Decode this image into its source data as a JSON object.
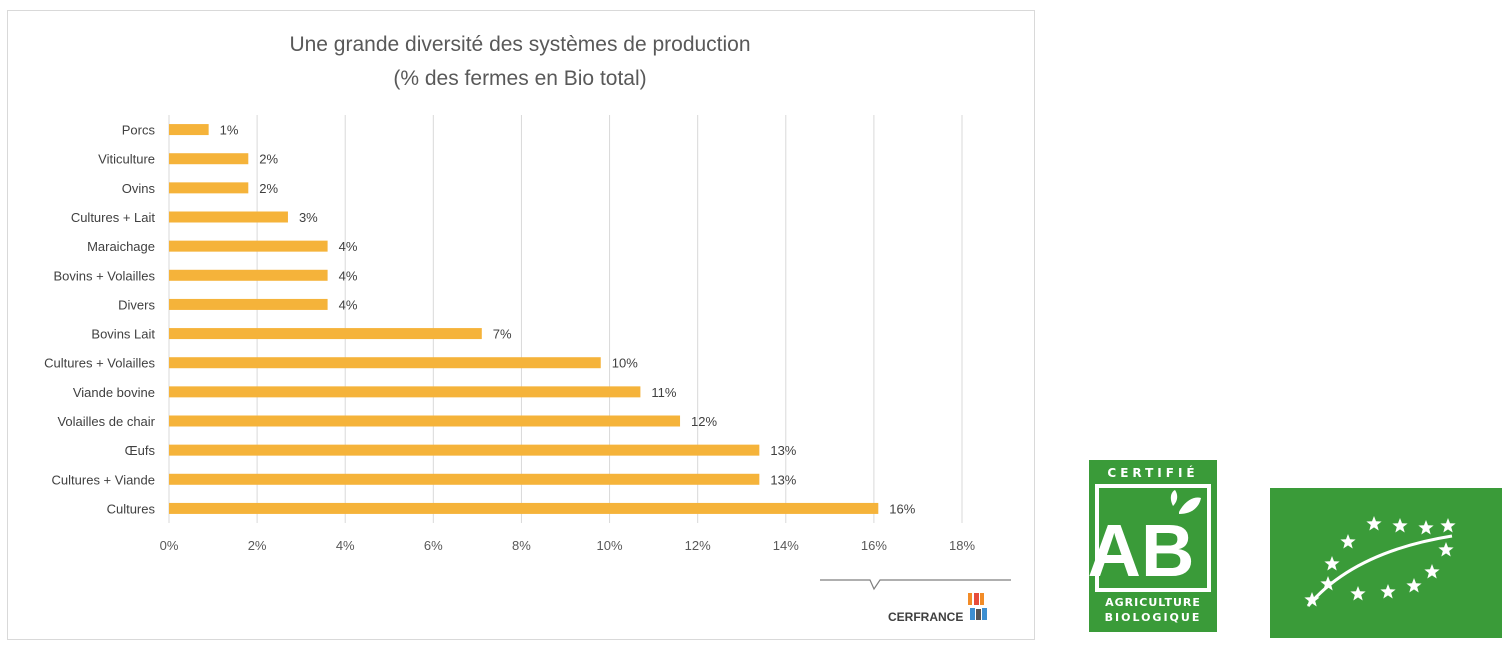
{
  "chart_data": {
    "type": "bar",
    "orientation": "horizontal",
    "title": "Une grande diversité des systèmes de production",
    "subtitle": "(% des fermes en Bio total)",
    "categories": [
      "Porcs",
      "Viticulture",
      "Ovins",
      "Cultures + Lait",
      "Maraichage",
      "Bovins + Volailles",
      "Divers",
      "Bovins Lait",
      "Cultures + Volailles",
      "Viande bovine",
      "Volailles de chair",
      "Œufs",
      "Cultures + Viande",
      "Cultures"
    ],
    "values": [
      0.9,
      1.8,
      1.8,
      2.7,
      3.6,
      3.6,
      3.6,
      7.1,
      9.8,
      10.7,
      11.6,
      13.4,
      13.4,
      16.1
    ],
    "data_labels": [
      "1%",
      "2%",
      "2%",
      "3%",
      "4%",
      "4%",
      "4%",
      "7%",
      "10%",
      "11%",
      "12%",
      "13%",
      "13%",
      "16%"
    ],
    "x_ticks": [
      "0%",
      "2%",
      "4%",
      "6%",
      "8%",
      "10%",
      "12%",
      "14%",
      "16%",
      "18%"
    ],
    "xlim": [
      0,
      18
    ],
    "xlabel": "",
    "ylabel": "",
    "grid": true,
    "legend": "none",
    "bar_color": "#F5B33A"
  },
  "branding": {
    "cerfrance_label": "CERFRANCE",
    "ab_logo_text": "CERTIFIÉ AB AGRICULTURE BIOLOGIQUE",
    "eu_logo_name": "eu-organic-leaf-logo",
    "logo_green": "#3A9B39"
  }
}
